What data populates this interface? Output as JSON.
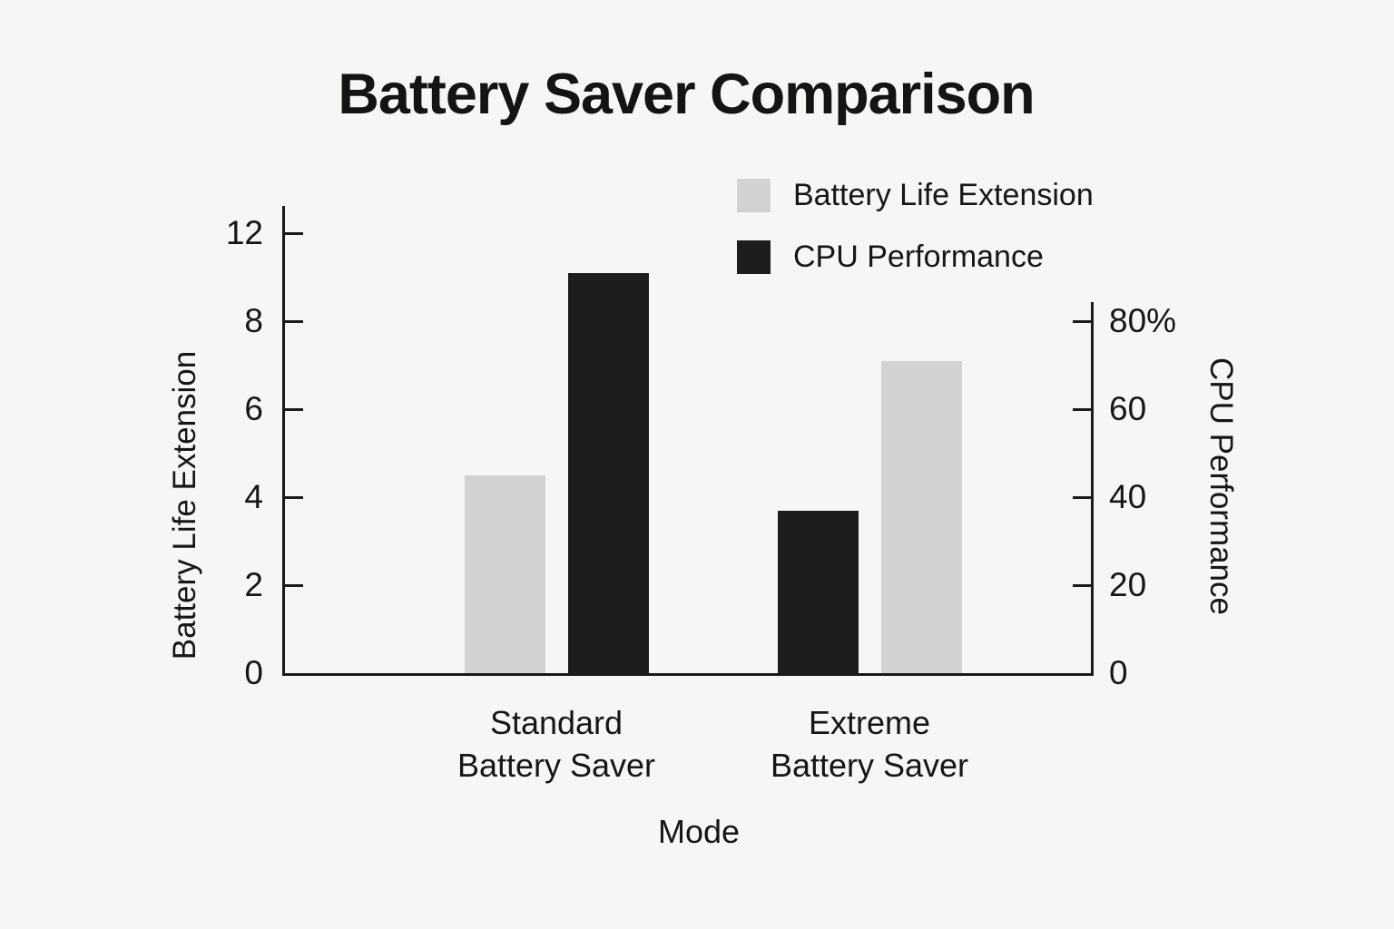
{
  "page": {
    "background_color": "#f6f6f5",
    "text_color": "#161616"
  },
  "chart_data": {
    "type": "bar",
    "title": "Battery Saver Comparison",
    "xlabel": "Mode",
    "axes": {
      "left": {
        "label": "Battery Life Extension",
        "tick_labels": [
          "0",
          "2",
          "4",
          "6",
          "8",
          "12"
        ],
        "units_per_tick": 2
      },
      "right": {
        "label": "CPU Performance",
        "tick_labels": [
          "0",
          "20",
          "40",
          "60",
          "80%"
        ],
        "units_per_tick": 20
      }
    },
    "categories": [
      {
        "label_lines": [
          "Standard",
          "Battery Saver"
        ],
        "bars": [
          {
            "series": "Battery Life Extension",
            "axis": "left",
            "value": 4.5
          },
          {
            "series": "CPU Performance",
            "axis": "right",
            "value": 91
          }
        ]
      },
      {
        "label_lines": [
          "Extreme",
          "Battery Saver"
        ],
        "bars": [
          {
            "series": "CPU Performance",
            "axis": "right",
            "value": 37
          },
          {
            "series": "Battery Life Extension",
            "axis": "left",
            "value": 7.1
          }
        ]
      }
    ],
    "legend": [
      {
        "label": "Battery Life Extension",
        "color": "#d2d2d2"
      },
      {
        "label": "CPU Performance",
        "color": "#1d1d1d"
      }
    ],
    "series_colors": {
      "Battery Life Extension": "#d2d2d2",
      "CPU Performance": "#1d1d1d"
    },
    "legend_position": "upper right",
    "grid": false
  }
}
